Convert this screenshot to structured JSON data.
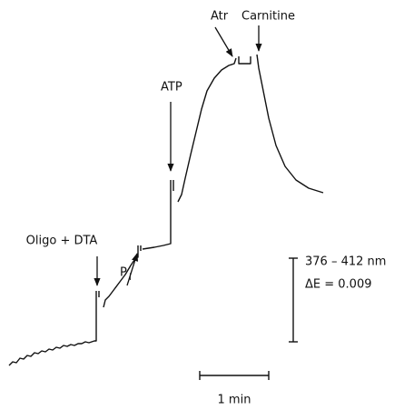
{
  "labels": {
    "oligo": "Oligo + DTA",
    "pi": "P",
    "pi_sub": "i",
    "atp": "ATP",
    "atr": "Atr",
    "carnitine": "Carnitine"
  },
  "scale": {
    "wavelength": "376 – 412 nm",
    "extinction": "ΔE = 0.009",
    "time": "1 min"
  }
}
